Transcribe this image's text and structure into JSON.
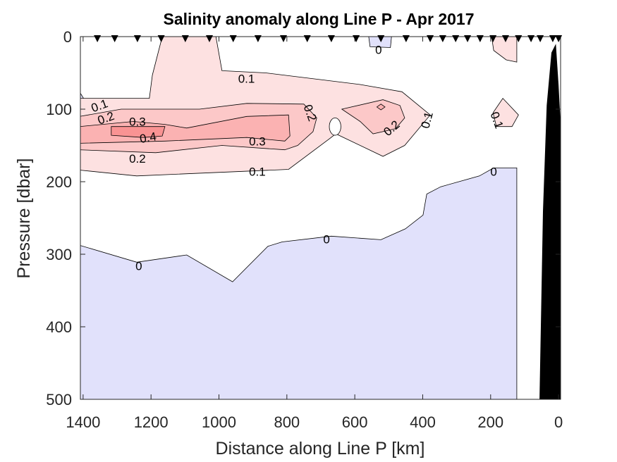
{
  "chart_data": {
    "type": "contour",
    "title": "Salinity anomaly along Line P - Apr 2017",
    "xlabel": "Distance along Line P [km]",
    "ylabel": "Pressure [dbar]",
    "xlim": [
      1408,
      -6
    ],
    "ylim": [
      0,
      500
    ],
    "x_reversed": true,
    "y_reversed": true,
    "xticks": [
      1400,
      1200,
      1000,
      800,
      600,
      400,
      200,
      0
    ],
    "yticks": [
      0,
      100,
      200,
      300,
      400,
      500
    ],
    "data_extent_km": [
      122,
      1408
    ],
    "stations_km": [
      1358,
      1307,
      1240,
      1170,
      1099,
      1028,
      958,
      885,
      810,
      740,
      669,
      596,
      523,
      449,
      378,
      341,
      303,
      268,
      231,
      193,
      156,
      118,
      81,
      54,
      17,
      0
    ],
    "colors": {
      "neg": "#e1e1fb",
      "l01": "#fde1e1",
      "l02": "#fcc8c8",
      "l03": "#fbb2b2",
      "l04": "#f99393",
      "bathymetry": "#000000"
    },
    "regions": [
      {
        "level": "neg",
        "points": [
          [
            1408,
            288
          ],
          [
            1242,
            311
          ],
          [
            1095,
            301
          ],
          [
            960,
            338
          ],
          [
            856,
            289
          ],
          [
            814,
            283
          ],
          [
            669,
            275
          ],
          [
            523,
            280
          ],
          [
            451,
            265
          ],
          [
            399,
            246
          ],
          [
            388,
            217
          ],
          [
            347,
            207
          ],
          [
            233,
            192
          ],
          [
            191,
            181
          ],
          [
            123,
            181
          ],
          [
            123,
            500
          ],
          [
            1408,
            500
          ]
        ]
      },
      {
        "level": "neg",
        "points": [
          [
            559,
            0
          ],
          [
            492,
            0
          ],
          [
            495,
            15
          ],
          [
            555,
            14
          ]
        ]
      },
      {
        "level": "neg",
        "points": [
          [
            1408,
            78
          ],
          [
            1395,
            88
          ],
          [
            1408,
            95
          ]
        ]
      },
      {
        "level": "l01",
        "points": [
          [
            1410,
            85
          ],
          [
            1205,
            85
          ],
          [
            1196,
            53
          ],
          [
            1167,
            0
          ],
          [
            1009,
            0
          ],
          [
            991,
            47
          ],
          [
            862,
            50
          ],
          [
            584,
            66
          ],
          [
            461,
            76
          ],
          [
            378,
            108
          ],
          [
            453,
            150
          ],
          [
            517,
            165
          ],
          [
            656,
            134
          ],
          [
            675,
            141
          ],
          [
            795,
            183
          ],
          [
            1242,
            192
          ],
          [
            1410,
            184
          ]
        ]
      },
      {
        "level": "l01",
        "points": [
          [
            197,
            0
          ],
          [
            123,
            0
          ],
          [
            123,
            35
          ],
          [
            154,
            32
          ],
          [
            191,
            19
          ]
        ]
      },
      {
        "level": "l01",
        "points": [
          [
            164,
            85
          ],
          [
            118,
            108
          ],
          [
            137,
            124
          ],
          [
            183,
            124
          ],
          [
            193,
            105
          ]
        ]
      },
      {
        "level": "l02",
        "points": [
          [
            1410,
            110
          ],
          [
            1288,
            100
          ],
          [
            1057,
            100
          ],
          [
            918,
            92
          ],
          [
            750,
            93
          ],
          [
            712,
            112
          ],
          [
            723,
            131
          ],
          [
            768,
            150
          ],
          [
            806,
            156
          ],
          [
            991,
            150
          ],
          [
            1186,
            160
          ],
          [
            1410,
            156
          ]
        ]
      },
      {
        "level": "l02",
        "points": [
          [
            638,
            100
          ],
          [
            517,
            87
          ],
          [
            467,
            95
          ],
          [
            453,
            112
          ],
          [
            480,
            127
          ],
          [
            546,
            134
          ],
          [
            584,
            117
          ]
        ]
      },
      {
        "level": "l03",
        "points": [
          [
            1410,
            124
          ],
          [
            1252,
            117
          ],
          [
            1159,
            121
          ],
          [
            1095,
            126
          ],
          [
            918,
            110
          ],
          [
            795,
            108
          ],
          [
            791,
            137
          ],
          [
            806,
            144
          ],
          [
            918,
            139
          ],
          [
            1159,
            144
          ],
          [
            1410,
            147
          ]
        ]
      },
      {
        "level": "l03",
        "points": [
          [
            535,
            97
          ],
          [
            523,
            93
          ],
          [
            511,
            97
          ],
          [
            523,
            101
          ]
        ]
      },
      {
        "level": "l04",
        "points": [
          [
            1317,
            124
          ],
          [
            1159,
            124
          ],
          [
            1167,
            137
          ],
          [
            1223,
            139
          ],
          [
            1317,
            136
          ]
        ]
      }
    ],
    "holes": [
      {
        "center": [
          658,
          124
        ],
        "rx_km": 17,
        "ry_dbar": 12
      }
    ],
    "bathymetry": [
      [
        56,
        500
      ],
      [
        46,
        241
      ],
      [
        35,
        95
      ],
      [
        21,
        22
      ],
      [
        8,
        10
      ],
      [
        0,
        66
      ],
      [
        -6,
        120
      ],
      [
        -6,
        500
      ]
    ],
    "contour_labels": [
      {
        "text": "0.1",
        "x": 919,
        "y": 58,
        "rot": 0
      },
      {
        "text": "0.1",
        "x": 1352,
        "y": 95,
        "rot": -20
      },
      {
        "text": "0.2",
        "x": 1333,
        "y": 112,
        "rot": -20
      },
      {
        "text": "0.3",
        "x": 1240,
        "y": 117,
        "rot": 0
      },
      {
        "text": "0.4",
        "x": 1209,
        "y": 139,
        "rot": -10
      },
      {
        "text": "0.3",
        "x": 887,
        "y": 144,
        "rot": 0
      },
      {
        "text": "0.2",
        "x": 1240,
        "y": 168,
        "rot": 0
      },
      {
        "text": "0.1",
        "x": 887,
        "y": 186,
        "rot": 0
      },
      {
        "text": "0.2",
        "x": 731,
        "y": 105,
        "rot": 70
      },
      {
        "text": "0.2",
        "x": 492,
        "y": 126,
        "rot": -40
      },
      {
        "text": "0.1",
        "x": 388,
        "y": 115,
        "rot": -75
      },
      {
        "text": "0.1",
        "x": 181,
        "y": 115,
        "rot": 70
      },
      {
        "text": "0",
        "x": 530,
        "y": 18,
        "rot": 0
      },
      {
        "text": "0",
        "x": 191,
        "y": 186,
        "rot": 0
      },
      {
        "text": "0",
        "x": 683,
        "y": 279,
        "rot": 0
      },
      {
        "text": "0",
        "x": 1236,
        "y": 316,
        "rot": 0
      }
    ]
  }
}
